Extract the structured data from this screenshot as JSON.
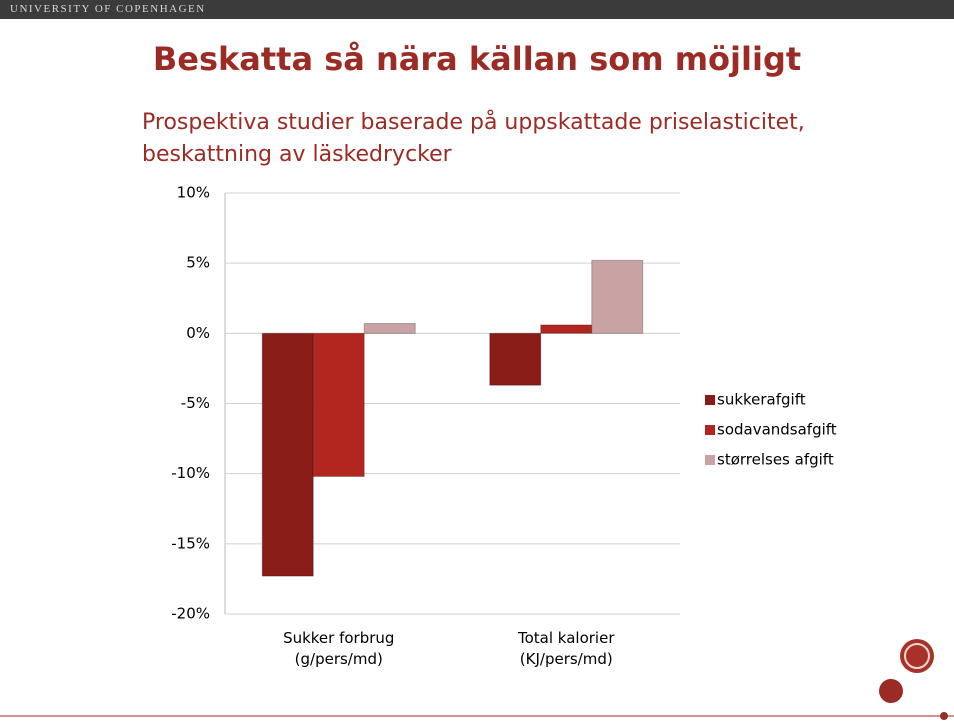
{
  "header": {
    "text": "UNIVERSITY OF COPENHAGEN"
  },
  "chart_data": {
    "type": "bar",
    "title": "Beskatta så nära källan som möjligt",
    "subtitle": [
      "Prospektiva studier baserade på uppskattade priselasticitet,",
      "beskattning av läskedrycker"
    ],
    "categories": [
      "Sukker forbrug (g/pers/md)",
      "Total kalorier (KJ/pers/md)"
    ],
    "series": [
      {
        "name": "sukkerafgift",
        "color": "#8a1c18",
        "values": [
          -17.3,
          -3.7
        ]
      },
      {
        "name": "sodavandsafgift",
        "color": "#b3261f",
        "values": [
          -10.2,
          0.6
        ]
      },
      {
        "name": "størrelses afgift",
        "color": "#c9a3a3",
        "values": [
          0.7,
          5.2
        ]
      }
    ],
    "ylim": [
      -20,
      10
    ],
    "yticks": [
      {
        "value": -20,
        "label": "-20%"
      },
      {
        "value": -15,
        "label": "-15%"
      },
      {
        "value": -10,
        "label": "-10%"
      },
      {
        "value": -5,
        "label": "-5%"
      },
      {
        "value": 0,
        "label": "0%"
      },
      {
        "value": 5,
        "label": "5%"
      },
      {
        "value": 10,
        "label": "10%"
      }
    ],
    "grid": true,
    "legend": "right"
  }
}
